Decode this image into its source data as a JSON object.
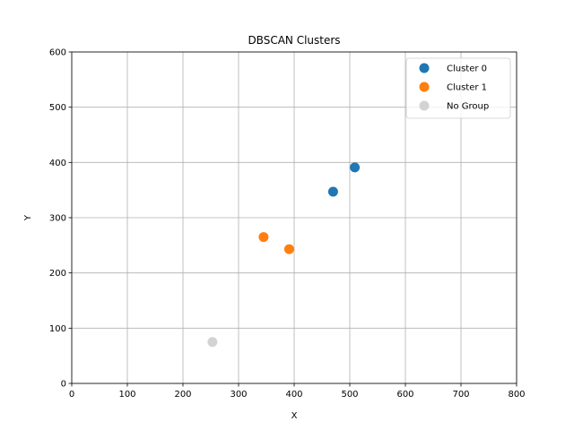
{
  "chart_data": {
    "type": "scatter",
    "title": "DBSCAN Clusters",
    "xlabel": "X",
    "ylabel": "Y",
    "xlim": [
      0,
      800
    ],
    "ylim": [
      0,
      600
    ],
    "xticks": [
      0,
      100,
      200,
      300,
      400,
      500,
      600,
      700,
      800
    ],
    "yticks": [
      0,
      100,
      200,
      300,
      400,
      500,
      600
    ],
    "grid": true,
    "legend_position": "top-right",
    "series": [
      {
        "name": "Cluster 0",
        "color": "#1f77b4",
        "points": [
          [
            470,
            347
          ],
          [
            509,
            391
          ]
        ]
      },
      {
        "name": "Cluster 1",
        "color": "#ff7f0e",
        "points": [
          [
            345,
            265
          ],
          [
            391,
            243
          ]
        ]
      },
      {
        "name": "No Group",
        "color": "#d3d3d3",
        "points": [
          [
            253,
            75
          ]
        ]
      }
    ]
  }
}
